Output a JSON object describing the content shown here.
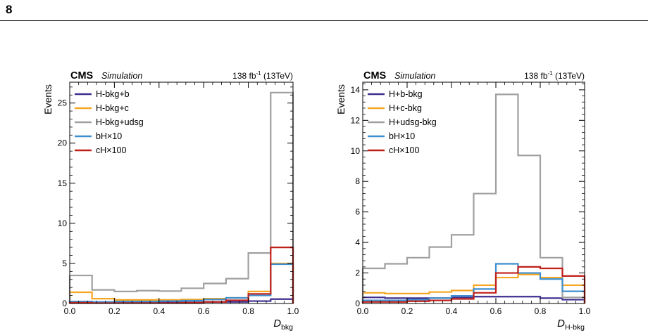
{
  "page": {
    "number": "8"
  },
  "chart_data": [
    {
      "type": "histogram",
      "experiment": "CMS",
      "tag": "Simulation",
      "lumi_value": "138 fb",
      "lumi_exp": "-1",
      "lumi_energy": " (13TeV)",
      "ylabel": "Events",
      "xlabel_main": "D",
      "xlabel_sub": "bkg",
      "xlim": [
        0,
        1
      ],
      "ylim": [
        0,
        27.6
      ],
      "xticks": [
        "0.0",
        "0.2",
        "0.4",
        "0.6",
        "0.8",
        "1.0"
      ],
      "yticks": [
        0,
        5,
        10,
        15,
        20,
        25
      ],
      "legend_position": "top-left",
      "bin_edges": [
        0,
        0.1,
        0.2,
        0.3,
        0.4,
        0.5,
        0.6,
        0.7,
        0.8,
        0.9,
        1.0
      ],
      "series": [
        {
          "name": "H-bkg+b",
          "color": "#3f2f8f",
          "values": [
            0.2,
            0.15,
            0.15,
            0.15,
            0.15,
            0.15,
            0.2,
            0.2,
            0.3,
            0.55
          ]
        },
        {
          "name": "H-bkg+c",
          "color": "#f5a623",
          "values": [
            1.4,
            0.6,
            0.45,
            0.45,
            0.45,
            0.5,
            0.6,
            0.7,
            1.5,
            5.0
          ]
        },
        {
          "name": "H-bkg+udsg",
          "color": "#a0a0a0",
          "values": [
            3.5,
            1.7,
            1.5,
            1.6,
            1.55,
            1.9,
            2.5,
            3.1,
            6.3,
            26.3
          ]
        },
        {
          "name": "bH×10",
          "color": "#3d8fcf",
          "values": [
            0.25,
            0.2,
            0.25,
            0.25,
            0.3,
            0.35,
            0.5,
            0.7,
            1.0,
            4.9
          ]
        },
        {
          "name": "cH×100",
          "color": "#c0201a",
          "values": [
            0.1,
            0.05,
            0.05,
            0.05,
            0.05,
            0.1,
            0.2,
            0.4,
            1.2,
            7.0
          ]
        }
      ]
    },
    {
      "type": "histogram",
      "experiment": "CMS",
      "tag": "Simulation",
      "lumi_value": "138 fb",
      "lumi_exp": "-1",
      "lumi_energy": " (13TeV)",
      "ylabel": "Events",
      "xlabel_main": "D",
      "xlabel_sub": "H-bkg",
      "xlim": [
        0,
        1
      ],
      "ylim": [
        0,
        14.5
      ],
      "xticks": [
        "0.0",
        "0.2",
        "0.4",
        "0.6",
        "0.8",
        "1.0"
      ],
      "yticks": [
        0,
        2,
        4,
        6,
        8,
        10,
        12,
        14
      ],
      "legend_position": "top-left",
      "bin_edges": [
        0,
        0.1,
        0.2,
        0.3,
        0.4,
        0.5,
        0.6,
        0.7,
        0.8,
        0.9,
        1.0
      ],
      "series": [
        {
          "name": "H+b-bkg",
          "color": "#3f2f8f",
          "values": [
            0.4,
            0.35,
            0.35,
            0.35,
            0.4,
            0.45,
            0.45,
            0.45,
            0.35,
            0.25
          ]
        },
        {
          "name": "H+c-bkg",
          "color": "#f5a623",
          "values": [
            0.7,
            0.65,
            0.65,
            0.75,
            0.85,
            1.2,
            1.7,
            1.9,
            1.7,
            1.2
          ]
        },
        {
          "name": "H+udsg-bkg",
          "color": "#a0a0a0",
          "values": [
            2.3,
            2.6,
            3.0,
            3.7,
            4.5,
            7.2,
            13.7,
            9.7,
            3.0,
            0.4
          ]
        },
        {
          "name": "bH×10",
          "color": "#3d8fcf",
          "values": [
            0.2,
            0.2,
            0.25,
            0.35,
            0.5,
            0.95,
            2.6,
            2.0,
            1.6,
            0.8
          ]
        },
        {
          "name": "cH×100",
          "color": "#c0201a",
          "values": [
            0.1,
            0.1,
            0.15,
            0.2,
            0.3,
            0.7,
            2.0,
            2.4,
            2.3,
            1.8
          ]
        }
      ]
    }
  ]
}
